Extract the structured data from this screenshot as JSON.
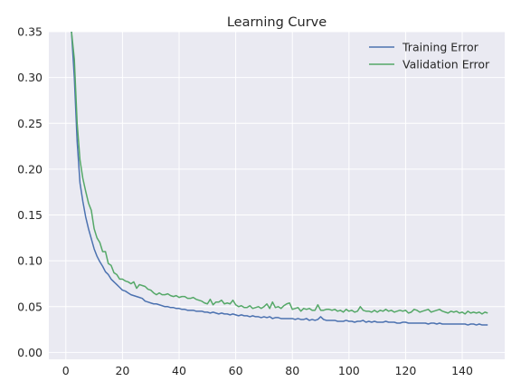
{
  "chart_data": {
    "type": "line",
    "title": "Learning Curve",
    "xlabel": "",
    "ylabel": "",
    "xlim": [
      -6,
      155
    ],
    "ylim": [
      -0.0075,
      0.35
    ],
    "xticks": [
      0,
      20,
      40,
      60,
      80,
      100,
      120,
      140
    ],
    "yticks": [
      0.0,
      0.05,
      0.1,
      0.15,
      0.2,
      0.25,
      0.3,
      0.35
    ],
    "ytick_labels": [
      "0.00",
      "0.05",
      "0.10",
      "0.15",
      "0.20",
      "0.25",
      "0.30",
      "0.35"
    ],
    "grid": true,
    "legend_position": "top-right",
    "series": [
      {
        "name": "Training Error",
        "color": "#4c72b0",
        "x": [
          2,
          3,
          4,
          5,
          6,
          7,
          8,
          9,
          10,
          11,
          12,
          13,
          14,
          15,
          16,
          17,
          18,
          19,
          20,
          21,
          22,
          23,
          24,
          25,
          26,
          27,
          28,
          29,
          30,
          31,
          32,
          33,
          34,
          35,
          36,
          37,
          38,
          39,
          40,
          41,
          42,
          43,
          44,
          45,
          46,
          47,
          48,
          49,
          50,
          51,
          52,
          53,
          54,
          55,
          56,
          57,
          58,
          59,
          60,
          61,
          62,
          63,
          64,
          65,
          66,
          67,
          68,
          69,
          70,
          71,
          72,
          73,
          74,
          75,
          76,
          77,
          78,
          79,
          80,
          81,
          82,
          83,
          84,
          85,
          86,
          87,
          88,
          89,
          90,
          91,
          92,
          93,
          94,
          95,
          96,
          97,
          98,
          99,
          100,
          101,
          102,
          103,
          104,
          105,
          106,
          107,
          108,
          109,
          110,
          111,
          112,
          113,
          114,
          115,
          116,
          117,
          118,
          119,
          120,
          121,
          122,
          123,
          124,
          125,
          126,
          127,
          128,
          129,
          130,
          131,
          132,
          133,
          134,
          135,
          136,
          137,
          138,
          139,
          140,
          141,
          142,
          143,
          144,
          145,
          146,
          147,
          148,
          149
        ],
        "y": [
          0.35,
          0.3,
          0.23,
          0.185,
          0.165,
          0.148,
          0.135,
          0.124,
          0.113,
          0.105,
          0.099,
          0.094,
          0.088,
          0.085,
          0.08,
          0.077,
          0.074,
          0.071,
          0.068,
          0.067,
          0.065,
          0.063,
          0.062,
          0.061,
          0.06,
          0.059,
          0.056,
          0.055,
          0.054,
          0.053,
          0.053,
          0.052,
          0.051,
          0.05,
          0.05,
          0.049,
          0.049,
          0.048,
          0.048,
          0.047,
          0.047,
          0.046,
          0.046,
          0.046,
          0.045,
          0.045,
          0.045,
          0.044,
          0.044,
          0.043,
          0.044,
          0.043,
          0.042,
          0.043,
          0.042,
          0.042,
          0.041,
          0.042,
          0.041,
          0.04,
          0.041,
          0.04,
          0.04,
          0.039,
          0.04,
          0.039,
          0.039,
          0.038,
          0.039,
          0.038,
          0.039,
          0.037,
          0.038,
          0.038,
          0.037,
          0.037,
          0.037,
          0.037,
          0.037,
          0.036,
          0.037,
          0.036,
          0.036,
          0.037,
          0.035,
          0.036,
          0.035,
          0.036,
          0.039,
          0.036,
          0.035,
          0.035,
          0.035,
          0.035,
          0.034,
          0.034,
          0.034,
          0.035,
          0.034,
          0.034,
          0.033,
          0.034,
          0.034,
          0.035,
          0.033,
          0.034,
          0.033,
          0.034,
          0.033,
          0.033,
          0.033,
          0.034,
          0.033,
          0.033,
          0.033,
          0.032,
          0.032,
          0.033,
          0.033,
          0.032,
          0.032,
          0.032,
          0.032,
          0.032,
          0.032,
          0.032,
          0.031,
          0.032,
          0.032,
          0.031,
          0.032,
          0.031,
          0.031,
          0.031,
          0.031,
          0.031,
          0.031,
          0.031,
          0.031,
          0.031,
          0.03,
          0.031,
          0.031,
          0.03,
          0.031,
          0.03,
          0.03,
          0.03
        ]
      },
      {
        "name": "Validation Error",
        "color": "#55a868",
        "x": [
          2,
          3,
          4,
          5,
          6,
          7,
          8,
          9,
          10,
          11,
          12,
          13,
          14,
          15,
          16,
          17,
          18,
          19,
          20,
          21,
          22,
          23,
          24,
          25,
          26,
          27,
          28,
          29,
          30,
          31,
          32,
          33,
          34,
          35,
          36,
          37,
          38,
          39,
          40,
          41,
          42,
          43,
          44,
          45,
          46,
          47,
          48,
          49,
          50,
          51,
          52,
          53,
          54,
          55,
          56,
          57,
          58,
          59,
          60,
          61,
          62,
          63,
          64,
          65,
          66,
          67,
          68,
          69,
          70,
          71,
          72,
          73,
          74,
          75,
          76,
          77,
          78,
          79,
          80,
          81,
          82,
          83,
          84,
          85,
          86,
          87,
          88,
          89,
          90,
          91,
          92,
          93,
          94,
          95,
          96,
          97,
          98,
          99,
          100,
          101,
          102,
          103,
          104,
          105,
          106,
          107,
          108,
          109,
          110,
          111,
          112,
          113,
          114,
          115,
          116,
          117,
          118,
          119,
          120,
          121,
          122,
          123,
          124,
          125,
          126,
          127,
          128,
          129,
          130,
          131,
          132,
          133,
          134,
          135,
          136,
          137,
          138,
          139,
          140,
          141,
          142,
          143,
          144,
          145,
          146,
          147,
          148,
          149
        ],
        "y": [
          0.35,
          0.32,
          0.25,
          0.21,
          0.19,
          0.176,
          0.163,
          0.155,
          0.135,
          0.125,
          0.12,
          0.11,
          0.11,
          0.097,
          0.095,
          0.087,
          0.085,
          0.08,
          0.08,
          0.078,
          0.077,
          0.075,
          0.077,
          0.07,
          0.074,
          0.073,
          0.072,
          0.069,
          0.068,
          0.065,
          0.063,
          0.065,
          0.063,
          0.063,
          0.064,
          0.062,
          0.061,
          0.062,
          0.06,
          0.061,
          0.061,
          0.059,
          0.059,
          0.06,
          0.058,
          0.057,
          0.056,
          0.054,
          0.053,
          0.058,
          0.052,
          0.055,
          0.055,
          0.057,
          0.053,
          0.054,
          0.053,
          0.057,
          0.052,
          0.05,
          0.051,
          0.049,
          0.049,
          0.051,
          0.048,
          0.049,
          0.05,
          0.048,
          0.05,
          0.053,
          0.048,
          0.055,
          0.049,
          0.05,
          0.048,
          0.051,
          0.053,
          0.054,
          0.047,
          0.048,
          0.049,
          0.045,
          0.048,
          0.047,
          0.048,
          0.046,
          0.046,
          0.052,
          0.046,
          0.046,
          0.047,
          0.047,
          0.046,
          0.047,
          0.045,
          0.046,
          0.044,
          0.047,
          0.045,
          0.046,
          0.044,
          0.045,
          0.05,
          0.046,
          0.045,
          0.045,
          0.044,
          0.046,
          0.044,
          0.046,
          0.045,
          0.047,
          0.045,
          0.046,
          0.044,
          0.045,
          0.046,
          0.045,
          0.046,
          0.043,
          0.044,
          0.047,
          0.046,
          0.044,
          0.045,
          0.046,
          0.047,
          0.044,
          0.045,
          0.046,
          0.047,
          0.045,
          0.044,
          0.043,
          0.045,
          0.044,
          0.045,
          0.043,
          0.044,
          0.042,
          0.045,
          0.043,
          0.044,
          0.043,
          0.044,
          0.042,
          0.044,
          0.043
        ]
      }
    ]
  }
}
